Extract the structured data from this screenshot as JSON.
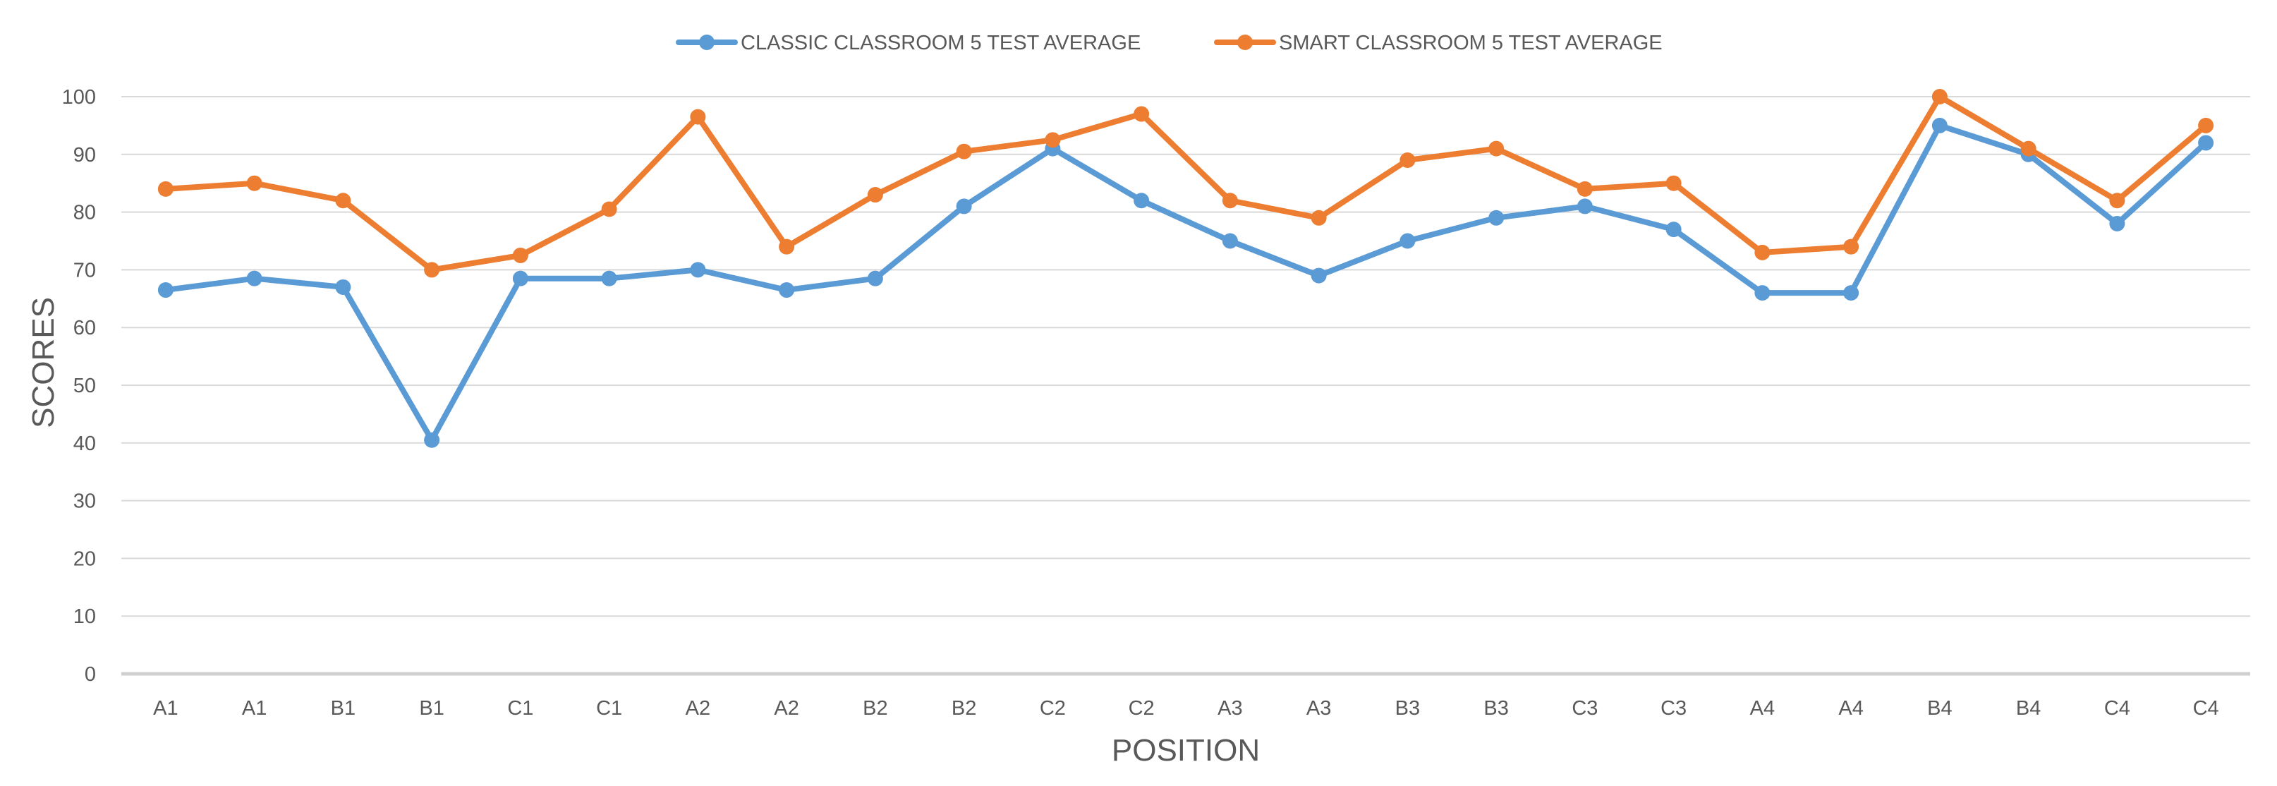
{
  "chart_data": {
    "type": "line",
    "title": "",
    "xlabel": "POSITION",
    "ylabel": "SCORES",
    "categories": [
      "A1",
      "A1",
      "B1",
      "B1",
      "C1",
      "C1",
      "A2",
      "A2",
      "B2",
      "B2",
      "C2",
      "C2",
      "A3",
      "A3",
      "B3",
      "B3",
      "C3",
      "C3",
      "A4",
      "A4",
      "B4",
      "B4",
      "C4",
      "C4"
    ],
    "ylim": [
      0,
      100
    ],
    "yticks": [
      0,
      10,
      20,
      30,
      40,
      50,
      60,
      70,
      80,
      90,
      100
    ],
    "grid": true,
    "legend_position": "top-center",
    "series": [
      {
        "name": "CLASSIC CLASSROOM 5 TEST AVERAGE",
        "color": "#5b9bd5",
        "values": [
          66.5,
          68.5,
          67,
          40.5,
          68.5,
          68.5,
          70,
          66.5,
          68.5,
          81,
          91,
          82,
          75,
          69,
          75,
          79,
          81,
          77,
          66,
          66,
          95,
          90,
          78,
          92
        ]
      },
      {
        "name": "SMART CLASSROOM 5 TEST AVERAGE",
        "color": "#ed7d31",
        "values": [
          84,
          85,
          82,
          70,
          72.5,
          80.5,
          96.5,
          74,
          83,
          90.5,
          92.5,
          97,
          82,
          79,
          89,
          91,
          84,
          85,
          73,
          74,
          100,
          91,
          82,
          95
        ]
      }
    ]
  }
}
